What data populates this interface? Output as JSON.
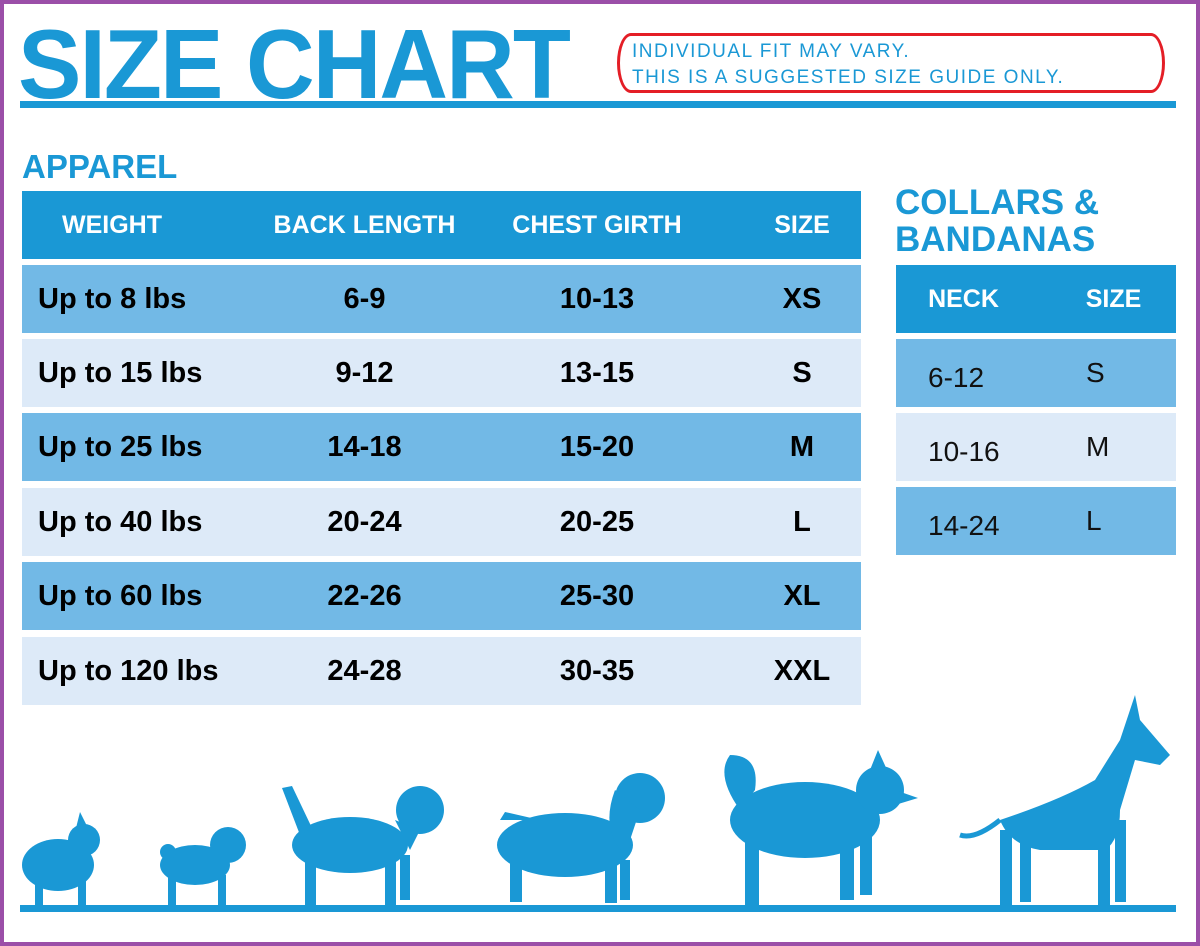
{
  "title": "SIZE CHART",
  "note": {
    "line1": "INDIVIDUAL FIT MAY VARY.",
    "line2": "THIS IS A SUGGESTED SIZE GUIDE ONLY."
  },
  "apparel": {
    "heading": "APPAREL",
    "columns": [
      "WEIGHT",
      "BACK LENGTH",
      "CHEST GIRTH",
      "SIZE"
    ],
    "rows": [
      [
        "Up to 8 lbs",
        "6-9",
        "10-13",
        "XS"
      ],
      [
        "Up to 15 lbs",
        "9-12",
        "13-15",
        "S"
      ],
      [
        "Up to 25 lbs",
        "14-18",
        "15-20",
        "M"
      ],
      [
        "Up to 40 lbs",
        "20-24",
        "20-25",
        "L"
      ],
      [
        "Up to 60 lbs",
        "22-26",
        "25-30",
        "XL"
      ],
      [
        "Up to 120 lbs",
        "24-28",
        "30-35",
        "XXL"
      ]
    ]
  },
  "collars": {
    "heading_line1": "COLLARS &",
    "heading_line2": "BANDANAS",
    "columns": [
      "NECK",
      "SIZE"
    ],
    "rows": [
      [
        "6-12",
        "S"
      ],
      [
        "10-16",
        "M"
      ],
      [
        "14-24",
        "L"
      ]
    ]
  },
  "colors": {
    "brand_blue": "#1a98d5",
    "row_dark": "#72b9e6",
    "row_light": "#ddeaf8",
    "note_border": "#e41e26",
    "frame": "#9b4fa8"
  },
  "illustration": [
    "pomeranian-silhouette",
    "pug-silhouette",
    "beagle-silhouette",
    "spaniel-silhouette",
    "husky-silhouette",
    "great-dane-silhouette"
  ]
}
